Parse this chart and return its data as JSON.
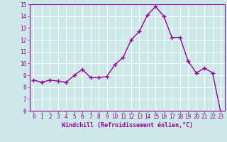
{
  "x": [
    0,
    1,
    2,
    3,
    4,
    5,
    6,
    7,
    8,
    9,
    10,
    11,
    12,
    13,
    14,
    15,
    16,
    17,
    18,
    19,
    20,
    21,
    22,
    23
  ],
  "y": [
    8.6,
    8.4,
    8.6,
    8.5,
    8.4,
    9.0,
    9.5,
    8.8,
    8.8,
    8.9,
    9.9,
    10.5,
    12.0,
    12.7,
    14.1,
    14.8,
    14.0,
    12.2,
    12.2,
    10.2,
    9.2,
    9.6,
    9.2,
    5.9
  ],
  "line_color": "#990099",
  "marker": "+",
  "marker_size": 4,
  "marker_lw": 1.0,
  "bg_color": "#cce8e8",
  "grid_color": "#ffffff",
  "xlabel": "Windchill (Refroidissement éolien,°C)",
  "xlabel_color": "#990099",
  "tick_color": "#990099",
  "spine_color": "#990099",
  "ylim": [
    6,
    15
  ],
  "xlim": [
    -0.5,
    23.5
  ],
  "yticks": [
    6,
    7,
    8,
    9,
    10,
    11,
    12,
    13,
    14,
    15
  ],
  "xticks": [
    0,
    1,
    2,
    3,
    4,
    5,
    6,
    7,
    8,
    9,
    10,
    11,
    12,
    13,
    14,
    15,
    16,
    17,
    18,
    19,
    20,
    21,
    22,
    23
  ],
  "tick_fontsize": 5.5,
  "xlabel_fontsize": 6.0,
  "line_width": 1.0
}
